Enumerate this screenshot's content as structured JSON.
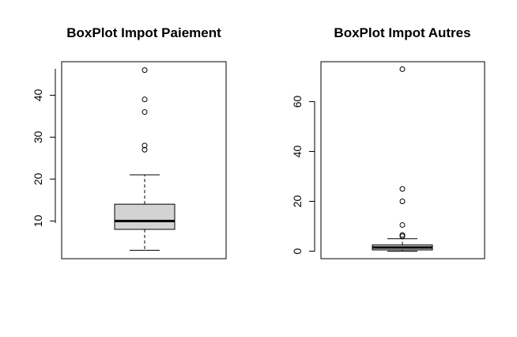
{
  "chart_data": [
    {
      "type": "box",
      "title": "BoxPlot Impot Paiement",
      "xlabel": "",
      "ylabel": "",
      "ylim": [
        1,
        48
      ],
      "yticks": [
        10,
        20,
        30,
        40
      ],
      "tick_labels": [
        "10",
        "20",
        "30",
        "40"
      ],
      "box": {
        "whisker_low": 3,
        "q1": 8,
        "median": 10,
        "q3": 14,
        "whisker_high": 21
      },
      "outliers": [
        27,
        28,
        36,
        39,
        46
      ],
      "box_fill": "#d3d3d3"
    },
    {
      "type": "box",
      "title": "BoxPlot Impot Autres",
      "xlabel": "",
      "ylabel": "",
      "ylim": [
        -3,
        76
      ],
      "yticks": [
        0,
        20,
        40,
        60
      ],
      "tick_labels": [
        "0",
        "20",
        "40",
        "60"
      ],
      "box": {
        "whisker_low": 0,
        "q1": 0.5,
        "median": 1.5,
        "q3": 2.5,
        "whisker_high": 5
      },
      "outliers": [
        6,
        6.5,
        10.5,
        20,
        25,
        73
      ],
      "box_fill": "#d3d3d3"
    }
  ]
}
